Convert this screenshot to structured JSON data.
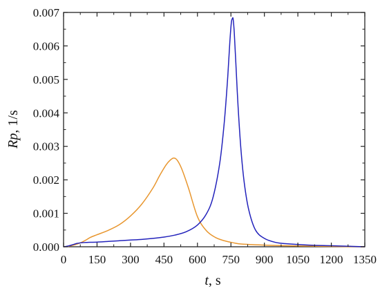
{
  "chart_data": {
    "type": "line",
    "xlabel": {
      "symbol": "t",
      "unit": ", s"
    },
    "ylabel": {
      "symbol": "Rp",
      "unit": ", 1/s"
    },
    "xlim": [
      0,
      1350
    ],
    "ylim": [
      0,
      0.007
    ],
    "x_ticks": [
      0,
      150,
      300,
      450,
      600,
      750,
      900,
      1050,
      1200,
      1350
    ],
    "x_tick_labels": [
      "0",
      "150",
      "300",
      "450",
      "600",
      "750",
      "900",
      "1050",
      "1200",
      "1350"
    ],
    "y_ticks": [
      0,
      0.001,
      0.002,
      0.003,
      0.004,
      0.005,
      0.006,
      0.007
    ],
    "y_tick_labels": [
      "0.000",
      "0.001",
      "0.002",
      "0.003",
      "0.004",
      "0.005",
      "0.006",
      "0.007"
    ],
    "grid": false,
    "legend": "none",
    "series": [
      {
        "color": "#e8962e",
        "x": [
          0,
          20,
          40,
          60,
          80,
          100,
          120,
          150,
          200,
          250,
          300,
          350,
          400,
          430,
          460,
          480,
          495,
          510,
          530,
          560,
          600,
          640,
          680,
          720,
          760,
          800,
          900,
          1000,
          1100,
          1200,
          1350
        ],
        "y": [
          0,
          1e-05,
          4e-05,
          8e-05,
          0.00013,
          0.0002,
          0.00028,
          0.00036,
          0.00049,
          0.00066,
          0.00092,
          0.00127,
          0.00175,
          0.00212,
          0.00245,
          0.0026,
          0.00265,
          0.00258,
          0.00232,
          0.00175,
          0.0009,
          0.00048,
          0.00028,
          0.00018,
          0.00012,
          8e-05,
          5e-05,
          3e-05,
          2e-05,
          1e-05,
          0.0
        ]
      },
      {
        "color": "#2222bb",
        "x": [
          0,
          20,
          40,
          60,
          80,
          100,
          150,
          200,
          250,
          300,
          350,
          400,
          450,
          500,
          550,
          600,
          640,
          670,
          700,
          720,
          735,
          745,
          752,
          757,
          760,
          765,
          772,
          782,
          795,
          810,
          830,
          860,
          900,
          950,
          1000,
          1100,
          1200,
          1300,
          1350
        ],
        "y": [
          0,
          2e-05,
          6e-05,
          0.0001,
          0.00012,
          0.00013,
          0.00014,
          0.00016,
          0.00018,
          0.0002,
          0.00022,
          0.00025,
          0.00029,
          0.00035,
          0.00045,
          0.00065,
          0.00098,
          0.00148,
          0.0025,
          0.0037,
          0.005,
          0.0061,
          0.0067,
          0.00682,
          0.0068,
          0.0064,
          0.0055,
          0.0042,
          0.0029,
          0.0019,
          0.0011,
          0.0005,
          0.00025,
          0.00013,
          9e-05,
          5e-05,
          3e-05,
          1e-05,
          0.0
        ]
      }
    ]
  }
}
